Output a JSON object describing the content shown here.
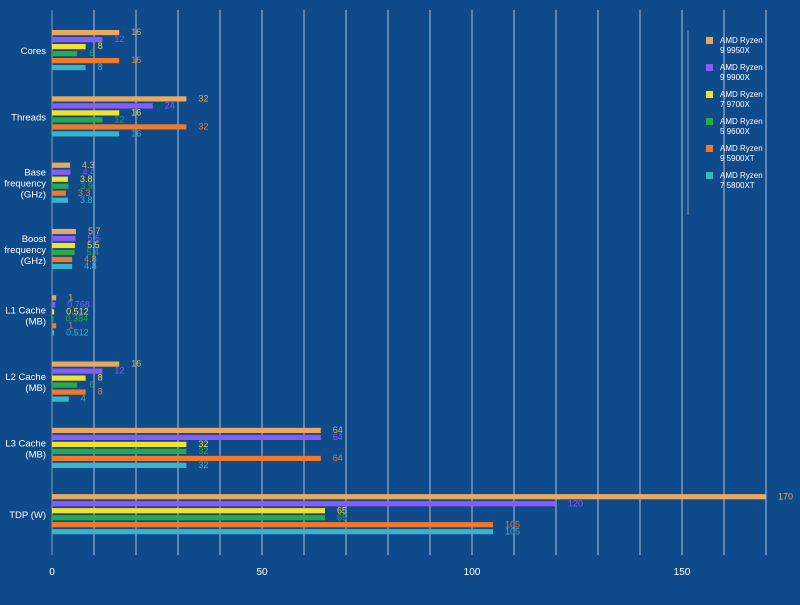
{
  "colors": {
    "background": "#0f4a8a",
    "grid": "#c9d6e6",
    "text": "#ffffff"
  },
  "chart_data": {
    "type": "bar",
    "orientation": "horizontal",
    "title": "",
    "xlabel": "",
    "ylabel": "",
    "xlim": [
      0,
      170
    ],
    "x_ticks": [
      0,
      50,
      100,
      150
    ],
    "grid": true,
    "legend_position": "top-right",
    "categories": [
      "Cores",
      "Threads",
      "Base frequency (GHz)",
      "Boost frequency (GHz)",
      "L1 Cache (MB)",
      "L2 Cache (MB)",
      "L3 Cache (MB)",
      "TDP (W)"
    ],
    "series": [
      {
        "name": "AMD Ryzen 9 9950X",
        "color": "#e8a95e",
        "values": [
          16,
          32,
          4.3,
          5.7,
          1,
          16,
          64,
          170
        ]
      },
      {
        "name": "AMD Ryzen 9 9900X",
        "color": "#8a5cf5",
        "values": [
          12,
          24,
          4.4,
          5.6,
          0.768,
          12,
          64,
          120
        ]
      },
      {
        "name": "AMD Ryzen 7 9700X",
        "color": "#f2e22e",
        "values": [
          8,
          16,
          3.8,
          5.5,
          0.512,
          8,
          32,
          65
        ]
      },
      {
        "name": "AMD Ryzen 5 9600X",
        "color": "#2aa84a",
        "values": [
          6,
          12,
          3.9,
          5.4,
          0.384,
          6,
          32,
          65
        ]
      },
      {
        "name": "AMD Ryzen 9 5900XT",
        "color": "#f07a2a",
        "values": [
          16,
          32,
          3.3,
          4.8,
          1,
          8,
          64,
          105
        ]
      },
      {
        "name": "AMD Ryzen 7 5800XT",
        "color": "#3bb3c9",
        "values": [
          8,
          16,
          3.8,
          4.8,
          0.512,
          4,
          32,
          105
        ]
      }
    ]
  }
}
